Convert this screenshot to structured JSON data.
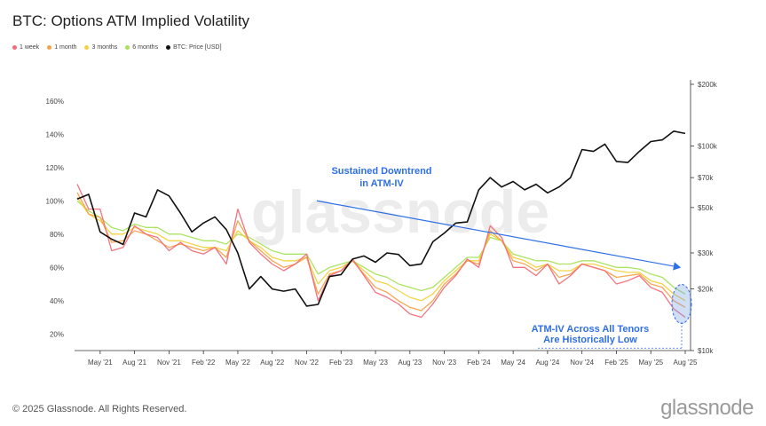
{
  "header": {
    "title": "BTC: Options ATM Implied Volatility"
  },
  "legend": [
    {
      "label": "1 week",
      "color": "#f26b7a"
    },
    {
      "label": "1 month",
      "color": "#f7a24a"
    },
    {
      "label": "3 months",
      "color": "#f2d23c"
    },
    {
      "label": "6 months",
      "color": "#a6e35a"
    },
    {
      "label": "BTC: Price [USD]",
      "color": "#111111"
    }
  ],
  "footer": {
    "copyright": "© 2025 Glassnode. All Rights Reserved.",
    "brand": "glassnode"
  },
  "chart_data": {
    "type": "line",
    "title": "BTC: Options ATM Implied Volatility",
    "watermark": "glassnode",
    "x_ticks": [
      "May '21",
      "Aug '21",
      "Nov '21",
      "Feb '22",
      "May '22",
      "Aug '22",
      "Nov '22",
      "Feb '23",
      "May '23",
      "Aug '23",
      "Nov '23",
      "Feb '24",
      "May '24",
      "Aug '24",
      "Nov '24",
      "Feb '25",
      "May '25",
      "Aug '25"
    ],
    "y_left_ticks": [
      "20%",
      "40%",
      "60%",
      "80%",
      "100%",
      "120%",
      "140%",
      "160%"
    ],
    "y_left_range": [
      10,
      170
    ],
    "y_right_ticks": [
      "$10k",
      "$20k",
      "$30k",
      "$50k",
      "$70k",
      "$100k",
      "$200k"
    ],
    "y_right_range": [
      10000,
      200000
    ],
    "y_right_scale": "log",
    "grid": false,
    "legend_position": "top-left",
    "x": [
      "2021-03",
      "2021-04",
      "2021-05",
      "2021-06",
      "2021-07",
      "2021-08",
      "2021-09",
      "2021-10",
      "2021-11",
      "2021-12",
      "2022-01",
      "2022-02",
      "2022-03",
      "2022-04",
      "2022-05",
      "2022-06",
      "2022-07",
      "2022-08",
      "2022-09",
      "2022-10",
      "2022-11",
      "2022-12",
      "2023-01",
      "2023-02",
      "2023-03",
      "2023-04",
      "2023-05",
      "2023-06",
      "2023-07",
      "2023-08",
      "2023-09",
      "2023-10",
      "2023-11",
      "2023-12",
      "2024-01",
      "2024-02",
      "2024-03",
      "2024-04",
      "2024-05",
      "2024-06",
      "2024-07",
      "2024-08",
      "2024-09",
      "2024-10",
      "2024-11",
      "2024-12",
      "2025-01",
      "2025-02",
      "2025-03",
      "2025-04",
      "2025-05",
      "2025-06",
      "2025-07",
      "2025-08"
    ],
    "series": [
      {
        "name": "1 week",
        "color": "#f26b7a",
        "axis": "left",
        "values": [
          110,
          95,
          95,
          70,
          72,
          85,
          80,
          78,
          70,
          75,
          70,
          68,
          72,
          62,
          95,
          75,
          68,
          62,
          58,
          62,
          68,
          40,
          55,
          58,
          65,
          55,
          45,
          42,
          38,
          32,
          30,
          38,
          48,
          55,
          65,
          60,
          85,
          78,
          60,
          60,
          55,
          62,
          50,
          55,
          62,
          60,
          58,
          50,
          52,
          55,
          48,
          45,
          35,
          30
        ]
      },
      {
        "name": "1 month",
        "color": "#f7a24a",
        "axis": "left",
        "values": [
          105,
          92,
          90,
          75,
          76,
          82,
          80,
          76,
          72,
          74,
          72,
          70,
          72,
          66,
          88,
          76,
          70,
          64,
          60,
          62,
          66,
          44,
          56,
          58,
          64,
          56,
          48,
          45,
          40,
          36,
          34,
          40,
          50,
          56,
          64,
          62,
          82,
          76,
          64,
          62,
          58,
          62,
          54,
          56,
          62,
          60,
          58,
          54,
          55,
          56,
          50,
          48,
          40,
          36
        ]
      },
      {
        "name": "3 months",
        "color": "#f2d23c",
        "axis": "left",
        "values": [
          102,
          92,
          88,
          80,
          80,
          84,
          82,
          80,
          76,
          76,
          74,
          72,
          72,
          70,
          82,
          76,
          72,
          66,
          64,
          64,
          66,
          50,
          58,
          60,
          64,
          58,
          52,
          50,
          46,
          42,
          40,
          44,
          52,
          58,
          64,
          64,
          80,
          76,
          66,
          64,
          60,
          62,
          58,
          58,
          62,
          62,
          60,
          58,
          57,
          57,
          52,
          50,
          44,
          40
        ]
      },
      {
        "name": "6 months",
        "color": "#a6e35a",
        "axis": "left",
        "values": [
          100,
          94,
          90,
          84,
          82,
          86,
          84,
          84,
          80,
          80,
          78,
          76,
          76,
          74,
          80,
          78,
          74,
          70,
          68,
          68,
          68,
          56,
          60,
          62,
          64,
          60,
          56,
          54,
          50,
          48,
          46,
          48,
          54,
          60,
          66,
          66,
          78,
          76,
          68,
          66,
          64,
          64,
          62,
          62,
          64,
          64,
          62,
          60,
          60,
          59,
          56,
          54,
          48,
          44
        ]
      },
      {
        "name": "BTC: Price [USD]",
        "color": "#111111",
        "axis": "right",
        "values": [
          55000,
          58000,
          38000,
          35000,
          33000,
          47000,
          45000,
          61000,
          57000,
          47000,
          38000,
          42000,
          45000,
          39000,
          30000,
          20000,
          23000,
          20000,
          19500,
          20000,
          16500,
          16800,
          23000,
          23500,
          28000,
          29000,
          27000,
          30000,
          29500,
          26000,
          26500,
          34000,
          37500,
          42000,
          42500,
          61000,
          70000,
          63000,
          67000,
          61000,
          65000,
          59000,
          63000,
          70000,
          96000,
          94000,
          102000,
          84000,
          83000,
          94000,
          105000,
          107000,
          118000,
          115000
        ]
      }
    ],
    "annotations": [
      {
        "text_lines": [
          "Sustained Downtrend",
          "in ATM-IV"
        ],
        "color": "#2f6fe6"
      },
      {
        "text_lines": [
          "ATM-IV Across All Tenors",
          "Are Historically Low"
        ],
        "color": "#2f6fe6"
      }
    ]
  }
}
